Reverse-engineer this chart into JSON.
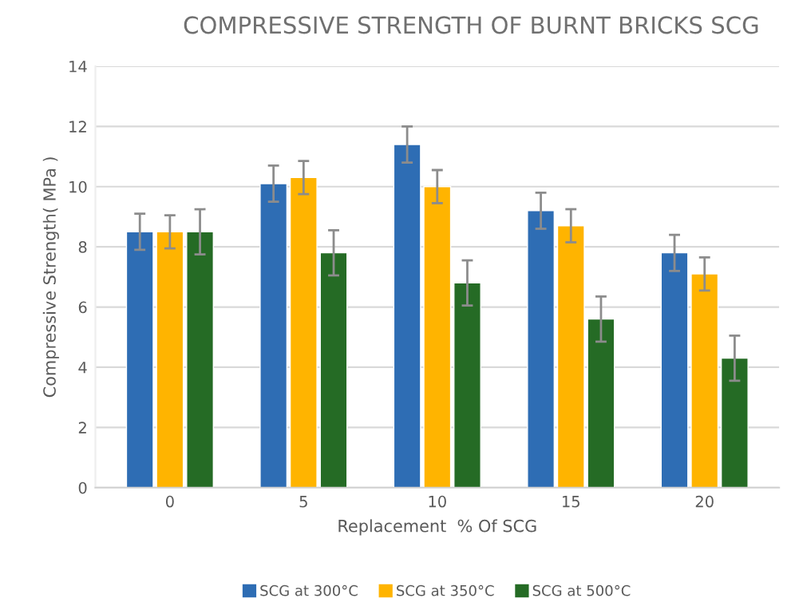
{
  "chart_data": {
    "type": "bar",
    "title": "COMPRESSIVE STRENGTH OF BURNT BRICKS SCG",
    "xlabel": "Replacement  % Of SCG",
    "ylabel": "Compressive Strength( MPa )",
    "categories": [
      "0",
      "5",
      "10",
      "15",
      "20"
    ],
    "series": [
      {
        "name": "SCG at 300°C",
        "color": "#2e6db4",
        "values": [
          8.5,
          10.1,
          11.4,
          9.2,
          7.8
        ],
        "errors": [
          0.6,
          0.6,
          0.6,
          0.6,
          0.6
        ]
      },
      {
        "name": "SCG at 350°C",
        "color": "#ffb400",
        "values": [
          8.5,
          10.3,
          10.0,
          8.7,
          7.1
        ],
        "errors": [
          0.55,
          0.55,
          0.55,
          0.55,
          0.55
        ]
      },
      {
        "name": "SCG at 500°C",
        "color": "#256b25",
        "values": [
          8.5,
          7.8,
          6.8,
          5.6,
          4.3
        ],
        "errors": [
          0.75,
          0.75,
          0.75,
          0.75,
          0.75
        ]
      }
    ],
    "ylim": [
      0,
      14
    ],
    "yticks": [
      0,
      2,
      4,
      6,
      8,
      10,
      12,
      14
    ],
    "grid": "y",
    "legend": "bottom"
  }
}
